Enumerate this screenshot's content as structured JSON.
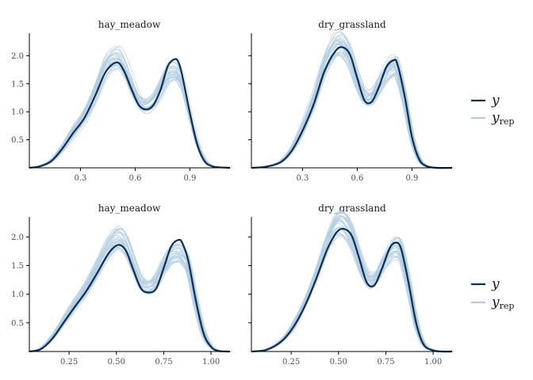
{
  "colors": {
    "y": "#0b2e55",
    "yrep": "#b3cde0",
    "axis": "#000000",
    "tick_text": "#4d4d4d"
  },
  "chart_data": [
    {
      "type": "line",
      "title": "hay_meadow",
      "xlabel": "",
      "ylabel": "",
      "xlim": [
        0.02,
        1.12
      ],
      "ylim": [
        0,
        2.4
      ],
      "xticks": [
        0.3,
        0.6,
        0.9
      ],
      "xtick_labels": [
        "0.3",
        "0.6",
        "0.9"
      ],
      "yticks": [
        0.5,
        1.0,
        1.5,
        2.0
      ],
      "ytick_labels": [
        "0.5",
        "1.0",
        "1.5",
        "2.0"
      ],
      "grid": false,
      "series": [
        {
          "name": "y",
          "x": [
            0.02,
            0.08,
            0.14,
            0.2,
            0.26,
            0.32,
            0.38,
            0.44,
            0.5,
            0.54,
            0.58,
            0.62,
            0.66,
            0.7,
            0.74,
            0.78,
            0.82,
            0.84,
            0.86,
            0.9,
            0.94,
            0.98,
            1.02,
            1.06,
            1.12
          ],
          "y": [
            0.0,
            0.03,
            0.12,
            0.34,
            0.62,
            0.88,
            1.28,
            1.72,
            1.88,
            1.72,
            1.4,
            1.12,
            1.04,
            1.12,
            1.4,
            1.82,
            1.94,
            1.86,
            1.62,
            0.98,
            0.42,
            0.12,
            0.03,
            0.01,
            0.0
          ]
        },
        {
          "name": "y_rep",
          "shape": [
            0.0,
            0.03,
            0.13,
            0.36,
            0.65,
            0.92,
            1.33,
            1.8,
            1.95,
            1.8,
            1.48,
            1.2,
            1.12,
            1.2,
            1.42,
            1.68,
            1.72,
            1.65,
            1.5,
            0.95,
            0.45,
            0.14,
            0.03,
            0.01,
            0.0
          ],
          "count": 30
        }
      ]
    },
    {
      "type": "line",
      "title": "dry_grassland",
      "xlabel": "",
      "ylabel": "",
      "xlim": [
        0.02,
        1.12
      ],
      "ylim": [
        0,
        2.4
      ],
      "xticks": [
        0.3,
        0.6,
        0.9
      ],
      "xtick_labels": [
        "0.3",
        "0.6",
        "0.9"
      ],
      "yticks": [
        0.5,
        1.0,
        1.5,
        2.0
      ],
      "ytick_labels": [],
      "grid": false,
      "series": [
        {
          "name": "y",
          "x": [
            0.02,
            0.1,
            0.18,
            0.24,
            0.3,
            0.36,
            0.42,
            0.48,
            0.52,
            0.56,
            0.6,
            0.64,
            0.68,
            0.72,
            0.76,
            0.8,
            0.82,
            0.86,
            0.9,
            0.94,
            0.98,
            1.04,
            1.12
          ],
          "y": [
            0.0,
            0.02,
            0.1,
            0.3,
            0.66,
            1.12,
            1.72,
            2.08,
            2.15,
            2.02,
            1.6,
            1.2,
            1.18,
            1.45,
            1.8,
            1.92,
            1.85,
            1.28,
            0.55,
            0.15,
            0.03,
            0.0,
            0.0
          ]
        },
        {
          "name": "y_rep",
          "shape": [
            0.0,
            0.02,
            0.11,
            0.32,
            0.7,
            1.2,
            1.82,
            2.2,
            2.2,
            1.98,
            1.58,
            1.28,
            1.26,
            1.48,
            1.7,
            1.82,
            1.76,
            1.25,
            0.56,
            0.16,
            0.03,
            0.0,
            0.0
          ],
          "count": 30
        }
      ]
    },
    {
      "type": "line",
      "title": "hay_meadow",
      "xlabel": "",
      "ylabel": "",
      "xlim": [
        0.04,
        1.1
      ],
      "ylim": [
        0,
        2.35
      ],
      "xticks": [
        0.25,
        0.5,
        0.75,
        1.0
      ],
      "xtick_labels": [
        "0.25",
        "0.50",
        "0.75",
        "1.00"
      ],
      "yticks": [
        0.5,
        1.0,
        1.5,
        2.0
      ],
      "ytick_labels": [
        "0.5",
        "1.0",
        "1.5",
        "2.0"
      ],
      "grid": false,
      "series": [
        {
          "name": "y",
          "x": [
            0.04,
            0.1,
            0.16,
            0.22,
            0.28,
            0.34,
            0.4,
            0.46,
            0.51,
            0.55,
            0.59,
            0.63,
            0.67,
            0.71,
            0.75,
            0.79,
            0.83,
            0.85,
            0.88,
            0.92,
            0.96,
            1.0,
            1.04,
            1.1
          ],
          "y": [
            0.0,
            0.04,
            0.22,
            0.5,
            0.78,
            1.05,
            1.38,
            1.72,
            1.86,
            1.76,
            1.42,
            1.1,
            1.03,
            1.1,
            1.46,
            1.84,
            1.95,
            1.88,
            1.58,
            0.88,
            0.32,
            0.08,
            0.01,
            0.0
          ]
        },
        {
          "name": "y_rep",
          "shape": [
            0.0,
            0.05,
            0.24,
            0.53,
            0.82,
            1.1,
            1.45,
            1.82,
            1.98,
            1.86,
            1.52,
            1.2,
            1.12,
            1.22,
            1.48,
            1.68,
            1.72,
            1.66,
            1.48,
            0.86,
            0.33,
            0.09,
            0.01,
            0.0
          ],
          "count": 30
        }
      ]
    },
    {
      "type": "line",
      "title": "dry_grassland",
      "xlabel": "",
      "ylabel": "",
      "xlim": [
        0.04,
        1.1
      ],
      "ylim": [
        0,
        2.35
      ],
      "xticks": [
        0.25,
        0.5,
        0.75,
        1.0
      ],
      "xtick_labels": [
        "0.25",
        "0.50",
        "0.75",
        "1.00"
      ],
      "yticks": [
        0.5,
        1.0,
        1.5,
        2.0
      ],
      "ytick_labels": [],
      "grid": false,
      "series": [
        {
          "name": "y",
          "x": [
            0.04,
            0.12,
            0.2,
            0.26,
            0.32,
            0.38,
            0.44,
            0.49,
            0.53,
            0.57,
            0.61,
            0.65,
            0.69,
            0.73,
            0.77,
            0.8,
            0.83,
            0.87,
            0.91,
            0.95,
            1.0,
            1.05,
            1.1
          ],
          "y": [
            0.0,
            0.03,
            0.18,
            0.42,
            0.78,
            1.25,
            1.78,
            2.08,
            2.14,
            2.02,
            1.62,
            1.2,
            1.16,
            1.45,
            1.8,
            1.9,
            1.8,
            1.2,
            0.5,
            0.12,
            0.02,
            0.0,
            0.0
          ]
        },
        {
          "name": "y_rep",
          "shape": [
            0.0,
            0.03,
            0.2,
            0.45,
            0.84,
            1.34,
            1.9,
            2.22,
            2.22,
            2.0,
            1.6,
            1.28,
            1.26,
            1.5,
            1.72,
            1.82,
            1.74,
            1.18,
            0.5,
            0.13,
            0.02,
            0.0,
            0.0
          ],
          "count": 30
        }
      ]
    }
  ],
  "legends": [
    {
      "y_label": "y",
      "yrep_label": "y",
      "yrep_sub": "rep"
    },
    {
      "y_label": "y",
      "yrep_label": "y",
      "yrep_sub": "rep"
    }
  ]
}
